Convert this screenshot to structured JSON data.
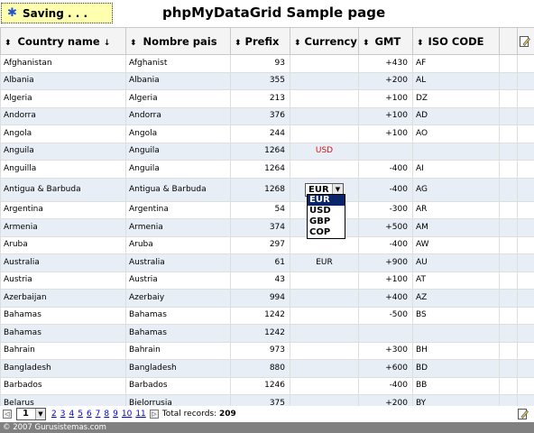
{
  "status": {
    "saving_label": "Saving . . ."
  },
  "page": {
    "title": "phpMyDataGrid Sample page"
  },
  "grid": {
    "columns": [
      {
        "label": "Country name",
        "sort_icon": "sort-arrows-icon",
        "sorted_indicator": "↓"
      },
      {
        "label": "Nombre pais",
        "sort_icon": "sort-arrows-icon"
      },
      {
        "label": "Prefix",
        "sort_icon": "sort-arrows-icon"
      },
      {
        "label": "Currency",
        "sort_icon": "sort-arrows-icon"
      },
      {
        "label": "GMT",
        "sort_icon": "sort-arrows-icon"
      },
      {
        "label": "ISO CODE",
        "sort_icon": "sort-arrows-icon"
      }
    ],
    "rows": [
      [
        "Afghanistan",
        "Afghanist",
        "93",
        "",
        "+430",
        "AF"
      ],
      [
        "Albania",
        "Albania",
        "355",
        "",
        "+200",
        "AL"
      ],
      [
        "Algeria",
        "Algeria",
        "213",
        "",
        "+100",
        "DZ"
      ],
      [
        "Andorra",
        "Andorra",
        "376",
        "",
        "+100",
        "AD"
      ],
      [
        "Angola",
        "Angola",
        "244",
        "",
        "+100",
        "AO"
      ],
      [
        "Anguila",
        "Anguila",
        "1264",
        "USD",
        "",
        ""
      ],
      [
        "Anguilla",
        "Anguila",
        "1264",
        "",
        "-400",
        "AI"
      ],
      [
        "Antigua & Barbuda",
        "Antigua & Barbuda",
        "1268",
        "EUR",
        "-400",
        "AG"
      ],
      [
        "Argentina",
        "Argentina",
        "54",
        "",
        "-300",
        "AR"
      ],
      [
        "Armenia",
        "Armenia",
        "374",
        "",
        "+500",
        "AM"
      ],
      [
        "Aruba",
        "Aruba",
        "297",
        "",
        "-400",
        "AW"
      ],
      [
        "Australia",
        "Australia",
        "61",
        "EUR",
        "+900",
        "AU"
      ],
      [
        "Austria",
        "Austria",
        "43",
        "",
        "+100",
        "AT"
      ],
      [
        "Azerbaijan",
        "Azerbaiy",
        "994",
        "",
        "+400",
        "AZ"
      ],
      [
        "Bahamas",
        "Bahamas",
        "1242",
        "",
        "-500",
        "BS"
      ],
      [
        "Bahamas",
        "Bahamas",
        "1242",
        "",
        "",
        ""
      ],
      [
        "Bahrain",
        "Bahrain",
        "973",
        "",
        "+300",
        "BH"
      ],
      [
        "Bangladesh",
        "Bangladesh",
        "880",
        "",
        "+600",
        "BD"
      ],
      [
        "Barbados",
        "Barbados",
        "1246",
        "",
        "-400",
        "BB"
      ],
      [
        "Belarus",
        "Bielorrusia",
        "375",
        "",
        "+200",
        "BY"
      ]
    ],
    "currency_dropdown": {
      "selected": "EUR",
      "options": [
        "EUR",
        "USD",
        "GBP",
        "COP"
      ]
    }
  },
  "pager": {
    "current_page": "1",
    "pages": [
      "2",
      "3",
      "4",
      "5",
      "6",
      "7",
      "8",
      "9",
      "10",
      "11"
    ],
    "total_label": "Total records:",
    "total_value": "209"
  },
  "footer": {
    "copyright": "© 2007 Gurusistemas.com"
  },
  "colors": {
    "alt_row": "#e8eef5",
    "usd_text": "#dd1111",
    "selected_option": "#0a246a",
    "saving_bg": "#ffffb0"
  }
}
